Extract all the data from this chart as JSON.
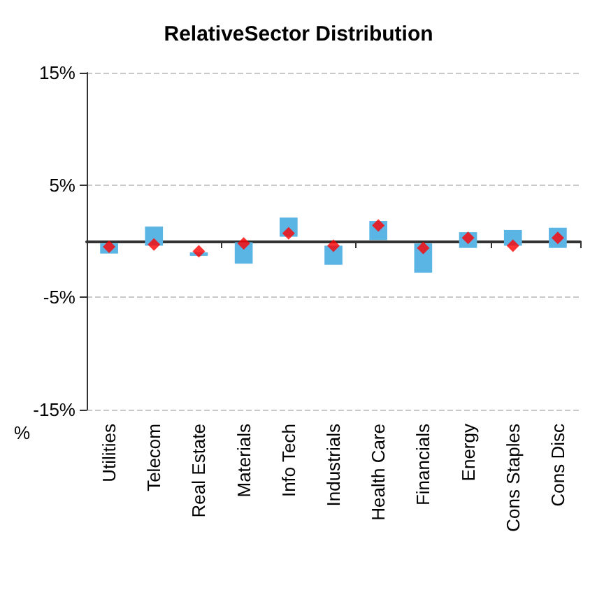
{
  "chart_data": {
    "type": "bar",
    "title": "RelativeSector Distribution",
    "ylabel": "%",
    "categories": [
      "Utilities",
      "Telecom",
      "Real Estate",
      "Materials",
      "Info Tech",
      "Industrials",
      "Health Care",
      "Financials",
      "Energy",
      "Cons Staples",
      "Cons Disc"
    ],
    "series": [
      {
        "color": "#5ab4e4",
        "base": [
          -1.1,
          -0.4,
          -1.3,
          -2.0,
          0.4,
          -2.1,
          0.1,
          -2.8,
          -0.6,
          -0.4,
          -0.6
        ],
        "values": [
          0.9,
          1.7,
          0.3,
          1.9,
          1.7,
          1.7,
          1.7,
          2.6,
          1.4,
          1.4,
          1.8
        ]
      },
      {
        "type": "scatter",
        "color": "#ff0000",
        "marker": "diamond",
        "x": [
          "Utilities",
          "Telecom",
          "Real Estate",
          "Materials",
          "Info Tech",
          "Industrials",
          "Health Care",
          "Financials",
          "Energy",
          "Cons Staples",
          "Cons Disc"
        ],
        "values": [
          -0.5,
          -0.3,
          -0.9,
          -0.2,
          0.7,
          -0.4,
          1.4,
          -0.6,
          0.3,
          -0.4,
          0.3
        ]
      }
    ],
    "ylim": [
      -15,
      15
    ],
    "yticks": [
      {
        "value": -15,
        "label": "-15%"
      },
      {
        "value": -5,
        "label": "-5%"
      },
      {
        "value": 5,
        "label": "5%"
      },
      {
        "value": 15,
        "label": "15%"
      }
    ],
    "grid": "y"
  }
}
